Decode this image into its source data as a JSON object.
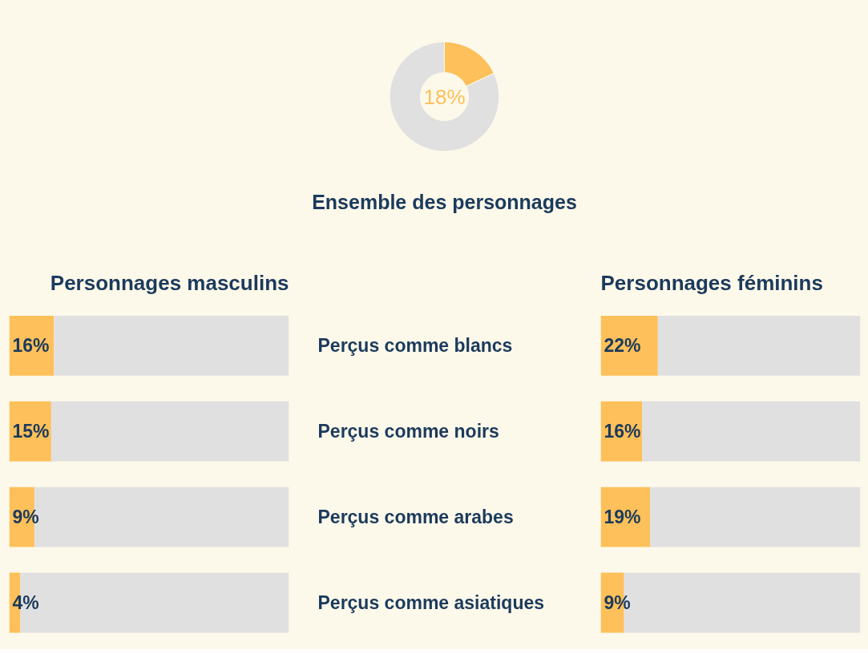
{
  "chart_data": [
    {
      "type": "donut",
      "title": "Ensemble des personnages",
      "categories": [
        null,
        null
      ],
      "values": [
        18,
        82
      ],
      "colors": [
        "#fdc05a",
        "#e0e0e0"
      ],
      "value_labels": [
        "18%",
        null
      ]
    },
    {
      "type": "bar",
      "orientation": "horizontal",
      "stacked": true,
      "title": "Personnages masculins",
      "categories": [
        "Perçus comme blancs",
        "Perçus comme noirs",
        "Perçus comme arabes",
        "Perçus comme asiatiques"
      ],
      "xlim": [
        0,
        100
      ],
      "tick_labels": "y",
      "series": [
        {
          "color": "#fdc05a",
          "values": [
            16,
            15,
            9,
            4
          ],
          "value_labels": [
            "16%",
            "15%",
            "9%",
            "4%"
          ]
        },
        {
          "color": "#e0e0e0",
          "values": [
            84,
            85,
            91,
            96
          ]
        }
      ]
    },
    {
      "type": "bar",
      "orientation": "horizontal",
      "stacked": true,
      "title": "Personnages féminins",
      "categories": [
        null,
        null,
        null,
        null
      ],
      "xlim": [
        0,
        100
      ],
      "tick_labels": false,
      "series": [
        {
          "color": "#fdc05a",
          "values": [
            22,
            16,
            19,
            9
          ],
          "value_labels": [
            "22%",
            "16%",
            "19%",
            "9%"
          ]
        },
        {
          "color": "#e0e0e0",
          "values": [
            78,
            84,
            81,
            91
          ]
        }
      ]
    }
  ]
}
